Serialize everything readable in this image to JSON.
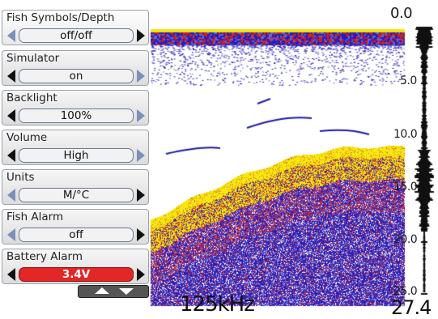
{
  "display": {
    "depth_top": "0.0",
    "depth_bottom": "27.4",
    "frequency": "125kHz",
    "depth_scale": [
      "5.0",
      "10.0",
      "15.0",
      "20.0",
      "25.0"
    ]
  },
  "menu": {
    "items": [
      {
        "label": "Fish Symbols/Depth",
        "value": "off/off",
        "left_active": false,
        "right_active": true,
        "alarm": false
      },
      {
        "label": "Simulator",
        "value": "on",
        "left_active": true,
        "right_active": false,
        "alarm": false
      },
      {
        "label": "Backlight",
        "value": "100%",
        "left_active": true,
        "right_active": false,
        "alarm": false
      },
      {
        "label": "Volume",
        "value": "High",
        "left_active": true,
        "right_active": false,
        "alarm": false
      },
      {
        "label": "Units",
        "value": "M/°C",
        "left_active": false,
        "right_active": true,
        "alarm": false
      },
      {
        "label": "Fish Alarm",
        "value": "off",
        "left_active": false,
        "right_active": true,
        "alarm": false
      },
      {
        "label": "Battery Alarm",
        "value": "3.4V",
        "left_active": true,
        "right_active": true,
        "alarm": true
      }
    ]
  },
  "colors": {
    "alarm_red": "#e32626",
    "bottom_yellow": "#f6e80f",
    "sonar_blue": "#1a14b0",
    "sonar_red": "#c8202a"
  }
}
